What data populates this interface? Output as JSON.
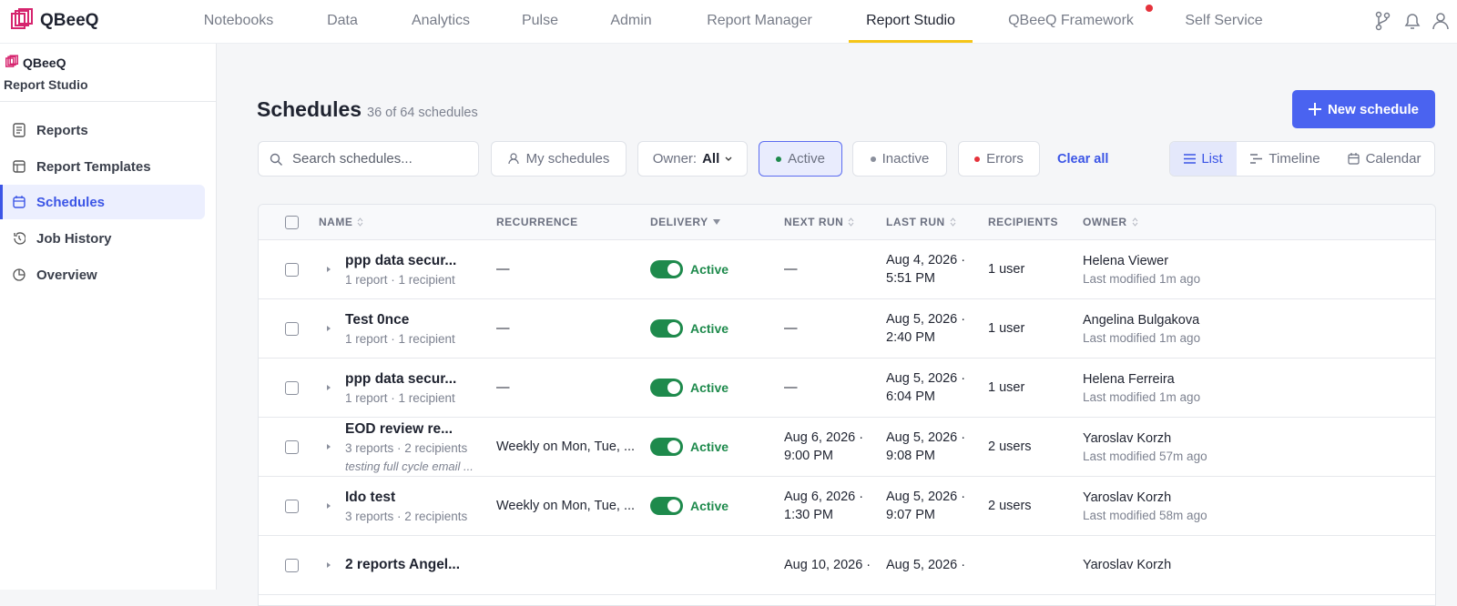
{
  "nav": {
    "logo": "QBeeQ",
    "items": [
      "Notebooks",
      "Data",
      "Analytics",
      "Pulse",
      "Admin",
      "Report Manager",
      "Report Studio",
      "QBeeQ Framework",
      "Self Service"
    ]
  },
  "sidebar": {
    "logo": "QBeeQ",
    "app": "Report Studio",
    "items": [
      "Reports",
      "Report Templates",
      "Schedules",
      "Job History",
      "Overview"
    ]
  },
  "header": {
    "title": "Schedules",
    "count": "36 of 64 schedules",
    "new_button": "New schedule"
  },
  "filters": {
    "search": "Search schedules...",
    "mine": "My schedules",
    "owner_label": "Owner:",
    "owner_value": "All",
    "active": "Active",
    "inactive": "Inactive",
    "errors": "Errors",
    "clear": "Clear all",
    "views": [
      "List",
      "Timeline",
      "Calendar"
    ]
  },
  "table": {
    "columns": [
      "NAME",
      "RECURRENCE",
      "DELIVERY",
      "NEXT RUN",
      "LAST RUN",
      "RECIPIENTS",
      "OWNER"
    ],
    "rows": [
      {
        "name": "ppp data secur...",
        "meta": "1 report · 1 recipient",
        "recurrence": "—",
        "delivery": "Active",
        "next_run": [
          "—"
        ],
        "last_run": [
          "Aug 4, 2026 ·",
          "5:51 PM"
        ],
        "recipients": "1 user",
        "owner": "Helena Viewer",
        "modified": "Last modified 1m ago"
      },
      {
        "name": "Test 0nce",
        "meta": "1 report · 1 recipient",
        "recurrence": "—",
        "delivery": "Active",
        "next_run": [
          "—"
        ],
        "last_run": [
          "Aug 5, 2026 ·",
          "2:40 PM"
        ],
        "recipients": "1 user",
        "owner": "Angelina Bulgakova",
        "modified": "Last modified 1m ago"
      },
      {
        "name": "ppp data secur...",
        "meta": "1 report · 1 recipient",
        "recurrence": "—",
        "delivery": "Active",
        "next_run": [
          "—"
        ],
        "last_run": [
          "Aug 5, 2026 ·",
          "6:04 PM"
        ],
        "recipients": "1 user",
        "owner": "Helena Ferreira",
        "modified": "Last modified 1m ago"
      },
      {
        "name": "EOD review re...",
        "meta": "3 reports · 2 recipients",
        "note": "testing full cycle email ...",
        "recurrence": "Weekly on Mon, Tue, ...",
        "delivery": "Active",
        "next_run": [
          "Aug 6, 2026 ·",
          "9:00 PM"
        ],
        "last_run": [
          "Aug 5, 2026 ·",
          "9:08 PM"
        ],
        "recipients": "2 users",
        "owner": "Yaroslav Korzh",
        "modified": "Last modified 57m ago"
      },
      {
        "name": "Ido test",
        "meta": "3 reports · 2 recipients",
        "recurrence": "Weekly on Mon, Tue, ...",
        "delivery": "Active",
        "next_run": [
          "Aug 6, 2026 ·",
          "1:30 PM"
        ],
        "last_run": [
          "Aug 5, 2026 ·",
          "9:07 PM"
        ],
        "recipients": "2 users",
        "owner": "Yaroslav Korzh",
        "modified": "Last modified 58m ago"
      },
      {
        "name": "2 reports Angel...",
        "next_run": [
          "Aug 10, 2026 ·"
        ],
        "last_run": [
          "Aug 5, 2026 ·"
        ],
        "owner": "Yaroslav Korzh"
      }
    ]
  }
}
